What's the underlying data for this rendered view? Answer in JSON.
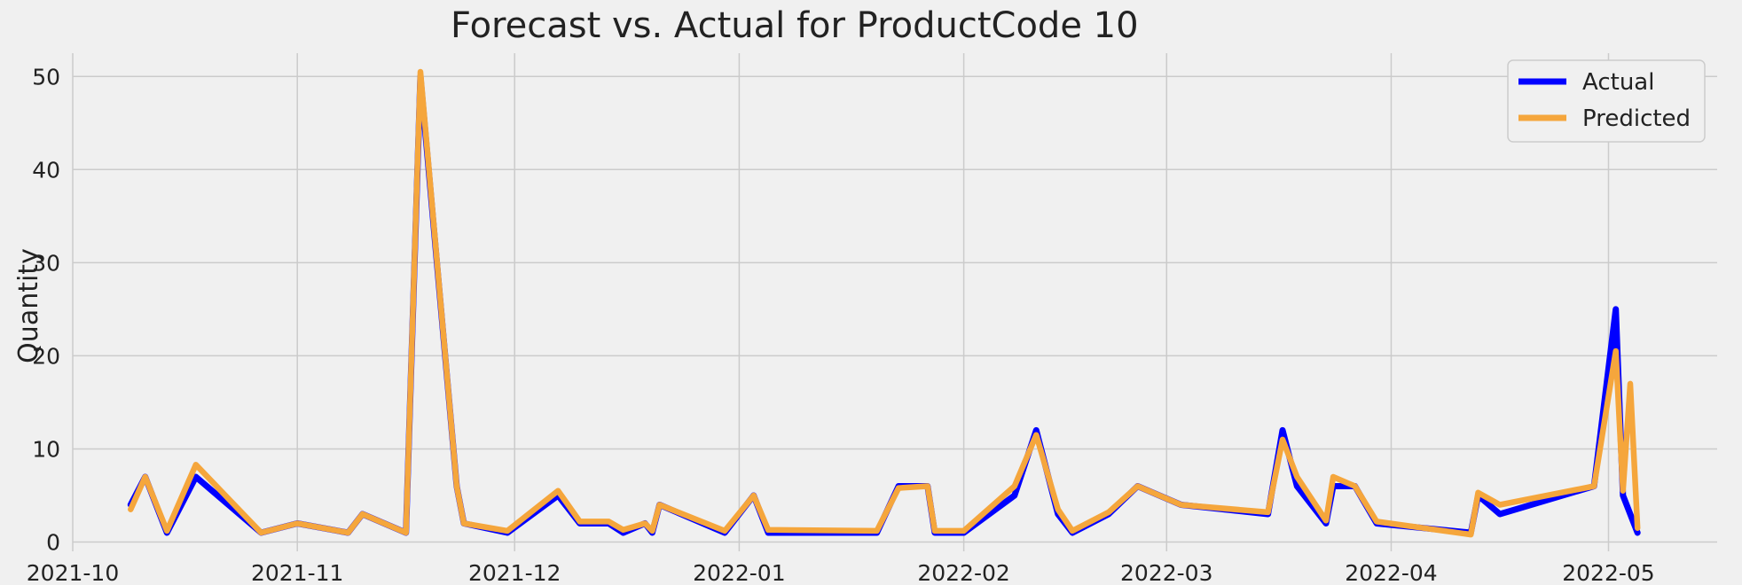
{
  "chart_data": {
    "type": "line",
    "title": "Forecast vs. Actual for ProductCode 10",
    "xlabel": "",
    "ylabel": "Quantity",
    "xlim": [
      "2021-10-01",
      "2022-05-16"
    ],
    "ylim": [
      -1,
      52.5
    ],
    "y_ticks": [
      0,
      10,
      20,
      30,
      40,
      50
    ],
    "x_ticks": [
      "2021-10-01",
      "2021-11-01",
      "2021-12-01",
      "2022-01-01",
      "2022-02-01",
      "2022-03-01",
      "2022-04-01",
      "2022-05-01"
    ],
    "x_tick_labels": [
      "2021-10",
      "2021-11",
      "2021-12",
      "2022-01",
      "2022-02",
      "2022-03",
      "2022-04",
      "2022-05"
    ],
    "grid": true,
    "legend_position": "top-right",
    "series": [
      {
        "name": "Actual",
        "color": "#0000ff",
        "points": [
          [
            "2021-10-09",
            4
          ],
          [
            "2021-10-11",
            7
          ],
          [
            "2021-10-14",
            1
          ],
          [
            "2021-10-18",
            7
          ],
          [
            "2021-10-27",
            1
          ],
          [
            "2021-11-01",
            2
          ],
          [
            "2021-11-08",
            1
          ],
          [
            "2021-11-10",
            3
          ],
          [
            "2021-11-16",
            1
          ],
          [
            "2021-11-18",
            50
          ],
          [
            "2021-11-23",
            6
          ],
          [
            "2021-11-24",
            2
          ],
          [
            "2021-11-30",
            1
          ],
          [
            "2021-12-07",
            5
          ],
          [
            "2021-12-10",
            2
          ],
          [
            "2021-12-14",
            2
          ],
          [
            "2021-12-16",
            1
          ],
          [
            "2021-12-19",
            2
          ],
          [
            "2021-12-20",
            1
          ],
          [
            "2021-12-21",
            4
          ],
          [
            "2021-12-30",
            1
          ],
          [
            "2022-01-03",
            5
          ],
          [
            "2022-01-05",
            1
          ],
          [
            "2022-01-20",
            1
          ],
          [
            "2022-01-23",
            6
          ],
          [
            "2022-01-27",
            6
          ],
          [
            "2022-01-28",
            1
          ],
          [
            "2022-02-01",
            1
          ],
          [
            "2022-02-08",
            5
          ],
          [
            "2022-02-11",
            12
          ],
          [
            "2022-02-14",
            3
          ],
          [
            "2022-02-16",
            1
          ],
          [
            "2022-02-21",
            3
          ],
          [
            "2022-02-25",
            6
          ],
          [
            "2022-03-03",
            4
          ],
          [
            "2022-03-15",
            3
          ],
          [
            "2022-03-17",
            12
          ],
          [
            "2022-03-19",
            6
          ],
          [
            "2022-03-23",
            2
          ],
          [
            "2022-03-24",
            6
          ],
          [
            "2022-03-27",
            6
          ],
          [
            "2022-03-30",
            2
          ],
          [
            "2022-04-12",
            1
          ],
          [
            "2022-04-13",
            5
          ],
          [
            "2022-04-16",
            3
          ],
          [
            "2022-04-29",
            6
          ],
          [
            "2022-05-02",
            25
          ],
          [
            "2022-05-03",
            5
          ],
          [
            "2022-05-05",
            1
          ]
        ]
      },
      {
        "name": "Predicted",
        "color": "#f5a63c",
        "points": [
          [
            "2021-10-09",
            3.5
          ],
          [
            "2021-10-11",
            7
          ],
          [
            "2021-10-14",
            1.2
          ],
          [
            "2021-10-18",
            8.3
          ],
          [
            "2021-10-27",
            1
          ],
          [
            "2021-11-01",
            2
          ],
          [
            "2021-11-08",
            1
          ],
          [
            "2021-11-10",
            3
          ],
          [
            "2021-11-16",
            1
          ],
          [
            "2021-11-18",
            50.5
          ],
          [
            "2021-11-23",
            6
          ],
          [
            "2021-11-24",
            2
          ],
          [
            "2021-11-30",
            1.2
          ],
          [
            "2021-12-07",
            5.5
          ],
          [
            "2021-12-10",
            2.2
          ],
          [
            "2021-12-14",
            2.2
          ],
          [
            "2021-12-16",
            1.3
          ],
          [
            "2021-12-19",
            2
          ],
          [
            "2021-12-20",
            1.2
          ],
          [
            "2021-12-21",
            4
          ],
          [
            "2021-12-30",
            1.2
          ],
          [
            "2022-01-03",
            5
          ],
          [
            "2022-01-05",
            1.3
          ],
          [
            "2022-01-20",
            1.2
          ],
          [
            "2022-01-23",
            5.8
          ],
          [
            "2022-01-27",
            6
          ],
          [
            "2022-01-28",
            1.2
          ],
          [
            "2022-02-01",
            1.2
          ],
          [
            "2022-02-08",
            6
          ],
          [
            "2022-02-11",
            11.5
          ],
          [
            "2022-02-14",
            3.5
          ],
          [
            "2022-02-16",
            1.2
          ],
          [
            "2022-02-21",
            3.2
          ],
          [
            "2022-02-25",
            6
          ],
          [
            "2022-03-03",
            4
          ],
          [
            "2022-03-15",
            3.2
          ],
          [
            "2022-03-17",
            11
          ],
          [
            "2022-03-19",
            7
          ],
          [
            "2022-03-23",
            2.3
          ],
          [
            "2022-03-24",
            7
          ],
          [
            "2022-03-27",
            6
          ],
          [
            "2022-03-30",
            2.2
          ],
          [
            "2022-04-12",
            0.8
          ],
          [
            "2022-04-13",
            5.3
          ],
          [
            "2022-04-16",
            4
          ],
          [
            "2022-04-29",
            6
          ],
          [
            "2022-05-02",
            20.5
          ],
          [
            "2022-05-03",
            5.5
          ],
          [
            "2022-05-04",
            17
          ],
          [
            "2022-05-05",
            1.5
          ]
        ]
      }
    ]
  }
}
